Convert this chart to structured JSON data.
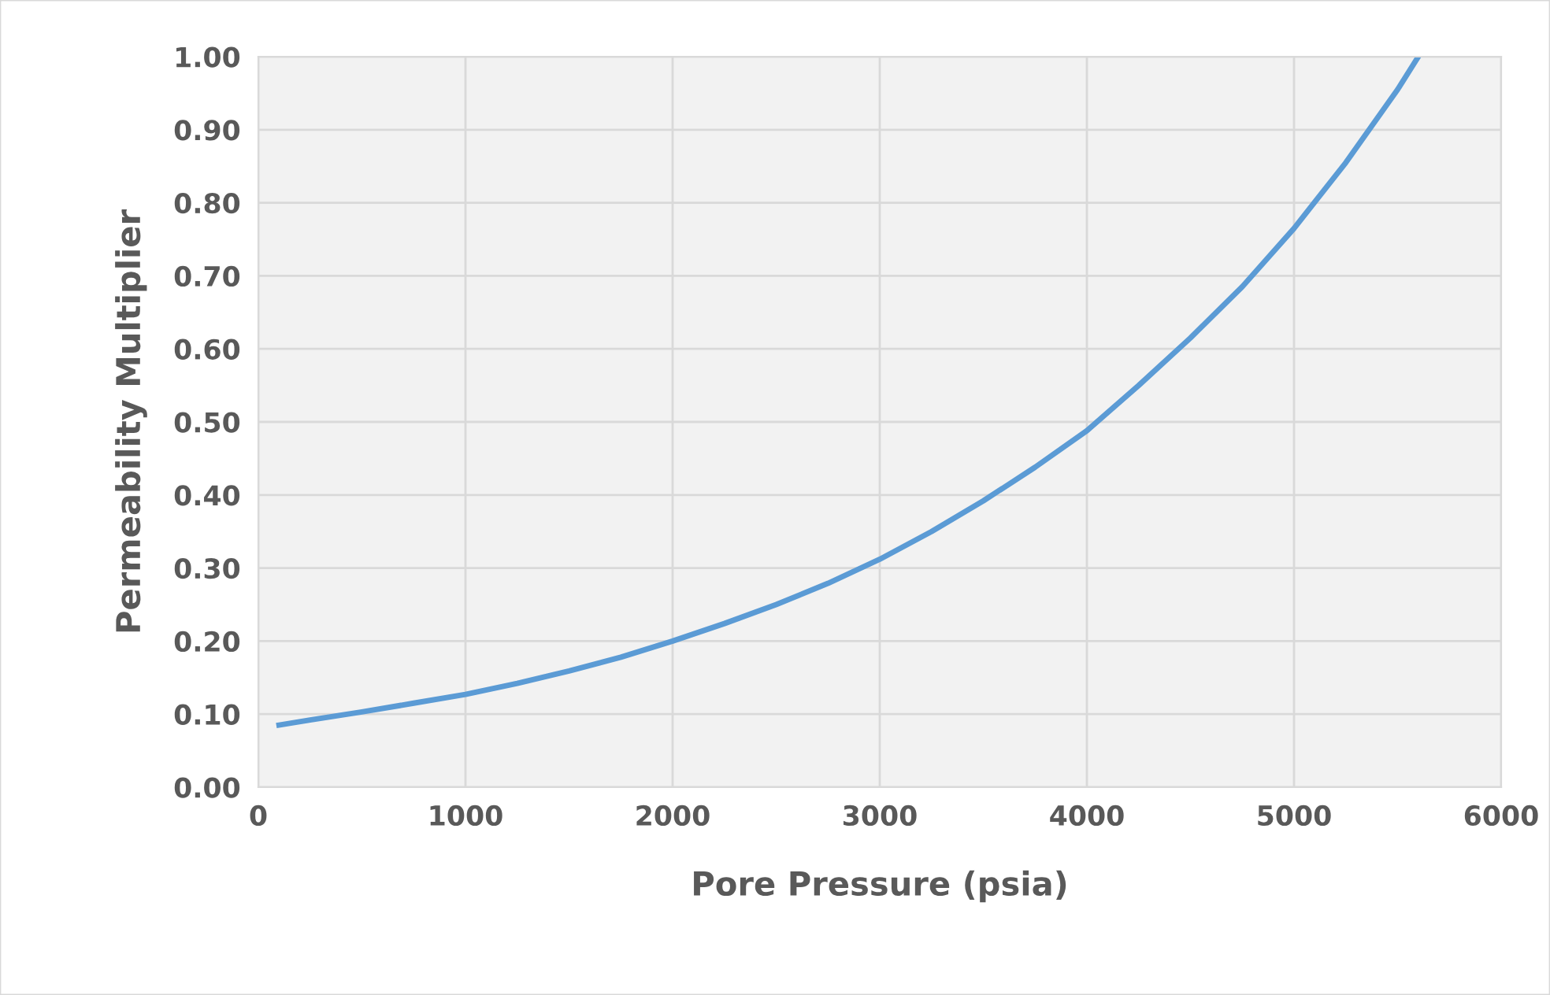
{
  "chart_data": {
    "type": "line",
    "xlabel": "Pore Pressure (psia)",
    "ylabel": "Permeability Multiplier",
    "x": [
      100,
      250,
      500,
      750,
      1000,
      1250,
      1500,
      1750,
      2000,
      2250,
      2500,
      2750,
      3000,
      3250,
      3500,
      3750,
      4000,
      4250,
      4500,
      4750,
      5000,
      5250,
      5500,
      5600
    ],
    "series": [
      {
        "color": "#5b9bd5",
        "values": [
          0.085,
          0.092,
          0.103,
          0.115,
          0.127,
          0.142,
          0.159,
          0.178,
          0.2,
          0.224,
          0.25,
          0.279,
          0.312,
          0.35,
          0.392,
          0.438,
          0.488,
          0.55,
          0.615,
          0.685,
          0.765,
          0.855,
          0.955,
          1.0
        ]
      }
    ],
    "xlim": [
      0,
      6000
    ],
    "xticks": [
      0,
      1000,
      2000,
      3000,
      4000,
      5000,
      6000
    ],
    "ylim": [
      0,
      1
    ],
    "yticks": [
      {
        "value": 0,
        "label": "0.00"
      },
      {
        "value": 0.1,
        "label": "0.10"
      },
      {
        "value": 0.2,
        "label": "0.20"
      },
      {
        "value": 0.3,
        "label": "0.30"
      },
      {
        "value": 0.4,
        "label": "0.40"
      },
      {
        "value": 0.5,
        "label": "0.50"
      },
      {
        "value": 0.6,
        "label": "0.60"
      },
      {
        "value": 0.7,
        "label": "0.70"
      },
      {
        "value": 0.8,
        "label": "0.80"
      },
      {
        "value": 0.9,
        "label": "0.90"
      },
      {
        "value": 1.0,
        "label": "1.00"
      }
    ],
    "grid": true,
    "marker": "none",
    "line_style": "solid"
  }
}
